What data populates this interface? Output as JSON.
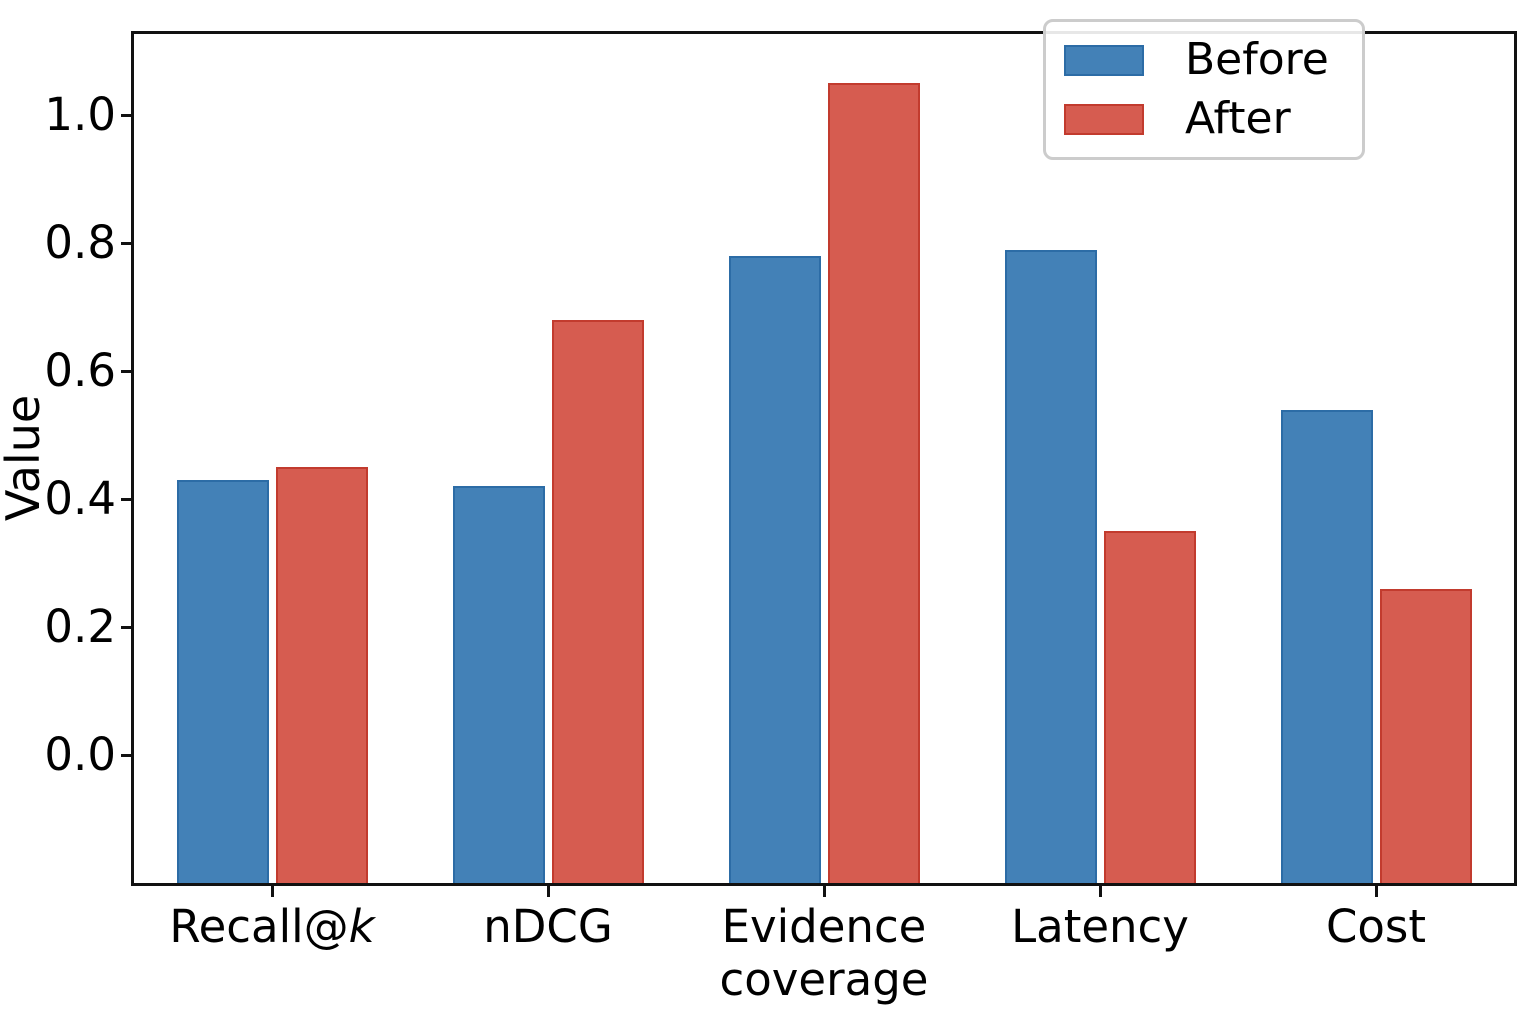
{
  "chart_data": {
    "type": "bar",
    "title": "",
    "xlabel": "",
    "ylabel": "Value",
    "grid": false,
    "legend_position": "upper right",
    "ylim": [
      -0.2,
      1.127
    ],
    "bar_bottom": "axis_min",
    "yticks": [
      {
        "value": 0.0,
        "label": "0.0"
      },
      {
        "value": 0.2,
        "label": "0.2"
      },
      {
        "value": 0.4,
        "label": "0.4"
      },
      {
        "value": 0.6,
        "label": "0.6"
      },
      {
        "value": 0.8,
        "label": "0.8"
      },
      {
        "value": 1.0,
        "label": "1.0"
      }
    ],
    "categories": [
      {
        "name": "Recall@k",
        "lines": [
          [
            {
              "text": "Recall@",
              "italic": false
            },
            {
              "text": "k",
              "italic": true
            }
          ]
        ]
      },
      {
        "name": "nDCG",
        "lines": [
          [
            {
              "text": "nDCG",
              "italic": false
            }
          ]
        ]
      },
      {
        "name": "Evidence coverage",
        "lines": [
          [
            {
              "text": "Evidence",
              "italic": false
            }
          ],
          [
            {
              "text": "coverage",
              "italic": false
            }
          ]
        ]
      },
      {
        "name": "Latency",
        "lines": [
          [
            {
              "text": "Latency",
              "italic": false
            }
          ]
        ]
      },
      {
        "name": "Cost",
        "lines": [
          [
            {
              "text": "Cost",
              "italic": false
            }
          ]
        ]
      }
    ],
    "series": [
      {
        "name": "Before",
        "color": "#4381b7",
        "edge_color": "#2c6ca6",
        "values": [
          0.43,
          0.42,
          0.78,
          0.79,
          0.54
        ]
      },
      {
        "name": "After",
        "color": "#d65c50",
        "edge_color": "#c23b2e",
        "values": [
          0.45,
          0.68,
          1.05,
          0.35,
          0.26
        ]
      }
    ]
  }
}
